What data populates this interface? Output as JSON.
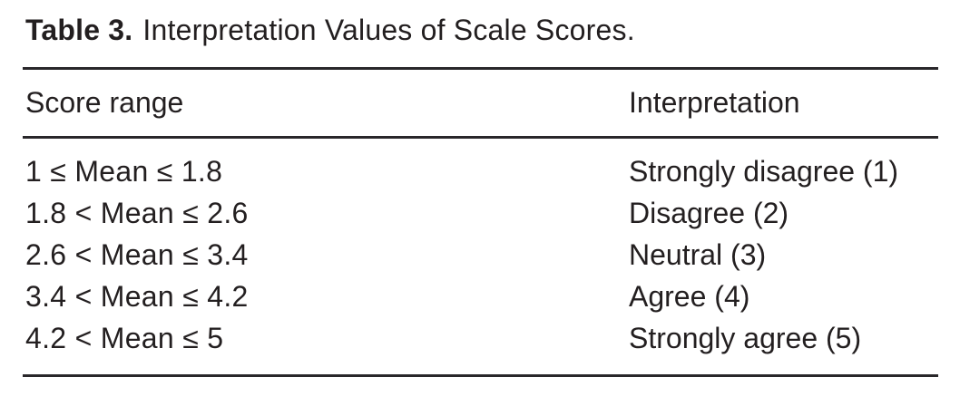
{
  "caption": {
    "label": "Table 3.",
    "text": "Interpretation Values of Scale Scores."
  },
  "columns": [
    {
      "key": "score_range",
      "label": "Score range"
    },
    {
      "key": "interpretation",
      "label": "Interpretation"
    }
  ],
  "rows": [
    {
      "score_range": "1 ≤ Mean ≤ 1.8",
      "interpretation": "Strongly disagree (1)"
    },
    {
      "score_range": "1.8 < Mean ≤ 2.6",
      "interpretation": "Disagree (2)"
    },
    {
      "score_range": "2.6 < Mean ≤ 3.4",
      "interpretation": "Neutral (3)"
    },
    {
      "score_range": "3.4 < Mean ≤ 4.2",
      "interpretation": "Agree (4)"
    },
    {
      "score_range": "4.2 < Mean ≤ 5",
      "interpretation": "Strongly agree (5)"
    }
  ],
  "colors": {
    "text": "#231f20",
    "rule": "#29272a",
    "background": "#ffffff"
  }
}
